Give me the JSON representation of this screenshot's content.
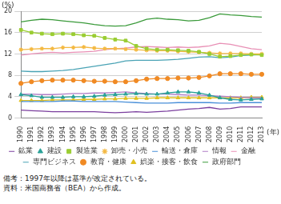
{
  "chart_data": {
    "type": "line",
    "y_label": "(%)",
    "x_label": "(年)",
    "notes": [
      "備考：1997年以降は基準が改定されている。",
      "資料：米国商務省（BEA）から作成。"
    ],
    "categories": [
      "1990",
      "1991",
      "1992",
      "1993",
      "1994",
      "1995",
      "1996",
      "1997",
      "1998",
      "1999",
      "2000",
      "2001",
      "2002",
      "2003",
      "2004",
      "2005",
      "2006",
      "2007",
      "2008",
      "2009",
      "2010",
      "2011",
      "2012",
      "2013"
    ],
    "ylim": [
      0,
      20
    ],
    "yticks": [
      0,
      4,
      8,
      12,
      16,
      20
    ],
    "grid": true,
    "legend": "bottom",
    "series": [
      {
        "name": "鉱業",
        "color": "#7b3f9e",
        "marker": "none",
        "values": [
          1.5,
          1.4,
          1.3,
          1.2,
          1.2,
          1.2,
          1.2,
          1.2,
          1.1,
          1.0,
          1.1,
          1.2,
          1.1,
          1.2,
          1.3,
          1.5,
          1.7,
          1.8,
          2.0,
          1.7,
          1.8,
          2.1,
          2.1,
          2.1
        ]
      },
      {
        "name": "建設",
        "color": "#2aa198",
        "marker": "triangle",
        "values": [
          4.4,
          4.2,
          3.9,
          3.9,
          3.9,
          4.0,
          4.0,
          4.1,
          4.3,
          4.4,
          4.5,
          4.6,
          4.5,
          4.5,
          4.7,
          4.9,
          4.9,
          4.7,
          4.3,
          3.8,
          3.5,
          3.4,
          3.5,
          3.6
        ]
      },
      {
        "name": "製造業",
        "color": "#9acd32",
        "marker": "square",
        "values": [
          16.5,
          16.0,
          15.8,
          15.7,
          15.8,
          15.7,
          15.5,
          15.4,
          15.0,
          14.7,
          14.5,
          13.5,
          13.0,
          12.8,
          12.8,
          12.7,
          12.6,
          12.4,
          12.0,
          11.5,
          11.6,
          11.8,
          11.9,
          11.8
        ]
      },
      {
        "name": "卸売・小売",
        "color": "#f4b942",
        "marker": "star",
        "values": [
          12.8,
          12.9,
          13.0,
          13.0,
          13.2,
          13.2,
          13.3,
          13.1,
          13.0,
          13.0,
          12.9,
          12.8,
          12.7,
          12.6,
          12.6,
          12.5,
          12.4,
          12.3,
          12.2,
          12.1,
          12.1,
          12.1,
          12.0,
          12.0
        ]
      },
      {
        "name": "輸送・倉庫",
        "color": "#4a90d9",
        "marker": "none",
        "values": [
          3.1,
          3.1,
          3.1,
          3.1,
          3.2,
          3.2,
          3.1,
          3.1,
          3.1,
          3.1,
          3.0,
          2.9,
          2.8,
          2.8,
          2.8,
          2.9,
          2.9,
          2.9,
          2.9,
          2.8,
          2.8,
          2.9,
          2.9,
          2.9
        ]
      },
      {
        "name": "情報",
        "color": "#b07cc6",
        "marker": "none",
        "values": [
          4.5,
          4.5,
          4.4,
          4.4,
          4.5,
          4.6,
          4.6,
          4.7,
          4.7,
          4.8,
          4.9,
          4.7,
          4.6,
          4.5,
          4.5,
          4.4,
          4.3,
          4.3,
          4.2,
          4.1,
          4.0,
          3.9,
          3.8,
          3.8
        ]
      },
      {
        "name": "金融",
        "color": "#e88fb5",
        "marker": "none",
        "values": [
          11.8,
          12.0,
          12.2,
          12.3,
          12.2,
          12.3,
          12.4,
          12.5,
          12.8,
          13.0,
          13.1,
          13.3,
          13.4,
          13.3,
          13.2,
          13.3,
          13.2,
          13.3,
          13.5,
          14.0,
          13.8,
          13.4,
          13.0,
          12.8
        ]
      },
      {
        "name": "専門ビジネス",
        "color": "#4aa3b5",
        "marker": "none",
        "values": [
          8.8,
          8.7,
          8.7,
          8.8,
          8.9,
          9.1,
          9.4,
          9.7,
          10.0,
          10.3,
          10.7,
          10.8,
          10.8,
          10.8,
          10.9,
          11.0,
          11.2,
          11.4,
          11.5,
          11.3,
          11.4,
          11.7,
          11.8,
          11.9
        ]
      },
      {
        "name": "教育・健康",
        "color": "#f08a24",
        "marker": "circle",
        "values": [
          6.5,
          6.8,
          7.0,
          7.1,
          7.1,
          7.1,
          7.0,
          6.9,
          6.9,
          6.8,
          6.8,
          7.0,
          7.3,
          7.4,
          7.4,
          7.5,
          7.5,
          7.6,
          7.9,
          8.3,
          8.3,
          8.3,
          8.2,
          8.2
        ]
      },
      {
        "name": "娯楽・接客・飲食",
        "color": "#e0c020",
        "marker": "triangle",
        "values": [
          3.3,
          3.3,
          3.3,
          3.4,
          3.4,
          3.4,
          3.5,
          3.5,
          3.6,
          3.6,
          3.7,
          3.7,
          3.7,
          3.8,
          3.8,
          3.8,
          3.8,
          3.8,
          3.8,
          3.8,
          3.8,
          3.8,
          3.9,
          3.9
        ]
      },
      {
        "name": "政府部門",
        "color": "#3a9a3a",
        "marker": "none",
        "values": [
          18.0,
          18.3,
          18.5,
          18.4,
          18.2,
          18.0,
          17.8,
          17.5,
          17.3,
          17.2,
          17.3,
          17.8,
          18.5,
          18.7,
          18.5,
          18.4,
          18.2,
          18.3,
          18.8,
          19.5,
          19.3,
          19.2,
          19.0,
          18.9
        ]
      }
    ]
  }
}
